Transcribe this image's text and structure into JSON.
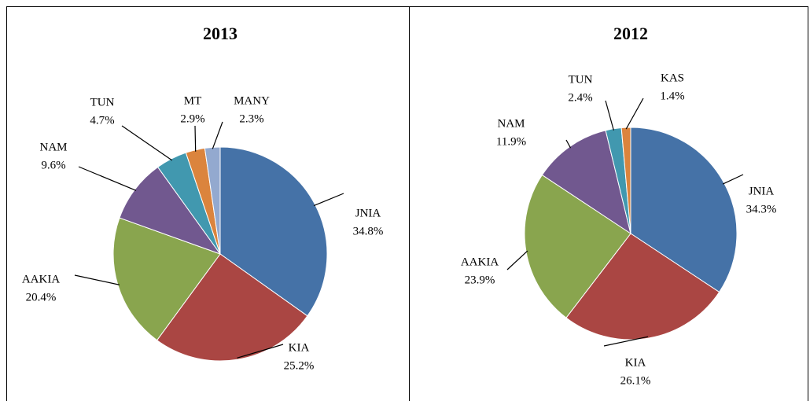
{
  "chart_data": [
    {
      "type": "pie",
      "title": "2013",
      "categories": [
        "JNIA",
        "KIA",
        "AAKIA",
        "NAM",
        "TUN",
        "MT",
        "MANY"
      ],
      "values": [
        34.8,
        25.2,
        20.4,
        9.6,
        4.7,
        2.9,
        2.3
      ],
      "value_labels": [
        "34.8%",
        "25.2%",
        "20.4%",
        "9.6%",
        "4.7%",
        "2.9%",
        "2.3%"
      ],
      "colors": [
        "#4572a7",
        "#aa4643",
        "#89a54e",
        "#71588f",
        "#4198af",
        "#db843d",
        "#93a9cf"
      ]
    },
    {
      "type": "pie",
      "title": "2012",
      "categories": [
        "JNIA",
        "KIA",
        "AAKIA",
        "NAM",
        "TUN",
        "KAS"
      ],
      "values": [
        34.3,
        26.1,
        23.9,
        11.9,
        2.4,
        1.4
      ],
      "value_labels": [
        "34.3%",
        "26.1%",
        "23.9%",
        "11.9%",
        "2.4%",
        "1.4%"
      ],
      "colors": [
        "#4572a7",
        "#aa4643",
        "#89a54e",
        "#71588f",
        "#4198af",
        "#db843d"
      ]
    }
  ]
}
